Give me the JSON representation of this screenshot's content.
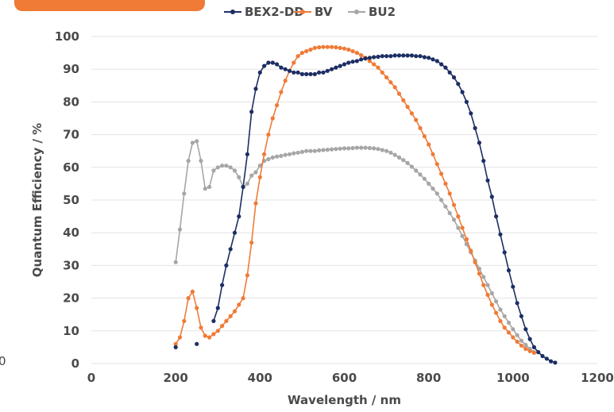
{
  "stray_label": "0",
  "chart_data": {
    "type": "line",
    "title": "",
    "xlabel": "Wavelength / nm",
    "ylabel": "Quantum Efficiency / %",
    "xlim": [
      0,
      1200
    ],
    "ylim": [
      0,
      100
    ],
    "x_ticks": [
      0,
      200,
      400,
      600,
      800,
      1000,
      1200
    ],
    "y_ticks": [
      0,
      10,
      20,
      30,
      40,
      50,
      60,
      70,
      80,
      90,
      100
    ],
    "grid": "horizontal",
    "legend": "top",
    "series": [
      {
        "name": "BEX2-DD",
        "color": "#1c2e63",
        "points": [
          [
            200,
            5
          ],
          [
            250,
            6
          ],
          [
            290,
            13
          ],
          [
            300,
            17
          ],
          [
            310,
            24
          ],
          [
            320,
            30
          ],
          [
            330,
            35
          ],
          [
            340,
            40
          ],
          [
            350,
            45
          ],
          [
            360,
            54
          ],
          [
            370,
            64
          ],
          [
            380,
            77
          ],
          [
            390,
            84
          ],
          [
            400,
            89
          ],
          [
            410,
            91
          ],
          [
            420,
            92
          ],
          [
            430,
            92
          ],
          [
            440,
            91.5
          ],
          [
            450,
            90.5
          ],
          [
            460,
            90
          ],
          [
            470,
            89.5
          ],
          [
            480,
            89
          ],
          [
            490,
            89
          ],
          [
            500,
            88.5
          ],
          [
            510,
            88.5
          ],
          [
            520,
            88.5
          ],
          [
            530,
            88.5
          ],
          [
            540,
            89
          ],
          [
            550,
            89
          ],
          [
            560,
            89.5
          ],
          [
            570,
            90
          ],
          [
            580,
            90.5
          ],
          [
            590,
            91
          ],
          [
            600,
            91.5
          ],
          [
            610,
            92
          ],
          [
            620,
            92.3
          ],
          [
            630,
            92.5
          ],
          [
            640,
            93
          ],
          [
            650,
            93.3
          ],
          [
            660,
            93.5
          ],
          [
            670,
            93.7
          ],
          [
            680,
            93.8
          ],
          [
            690,
            94
          ],
          [
            700,
            94
          ],
          [
            710,
            94
          ],
          [
            720,
            94.2
          ],
          [
            730,
            94.2
          ],
          [
            740,
            94.2
          ],
          [
            750,
            94.2
          ],
          [
            760,
            94.2
          ],
          [
            770,
            94
          ],
          [
            780,
            94
          ],
          [
            790,
            93.7
          ],
          [
            800,
            93.5
          ],
          [
            810,
            93
          ],
          [
            820,
            92.5
          ],
          [
            830,
            91.5
          ],
          [
            840,
            90.5
          ],
          [
            850,
            89
          ],
          [
            860,
            87.5
          ],
          [
            870,
            85.5
          ],
          [
            880,
            83
          ],
          [
            890,
            80
          ],
          [
            900,
            76.5
          ],
          [
            910,
            72
          ],
          [
            920,
            67.5
          ],
          [
            930,
            62
          ],
          [
            940,
            56
          ],
          [
            950,
            51
          ],
          [
            960,
            45
          ],
          [
            970,
            39.5
          ],
          [
            980,
            34
          ],
          [
            990,
            28.5
          ],
          [
            1000,
            23.5
          ],
          [
            1010,
            18.5
          ],
          [
            1020,
            14.5
          ],
          [
            1030,
            10.5
          ],
          [
            1040,
            7.5
          ],
          [
            1050,
            5
          ],
          [
            1060,
            3.5
          ],
          [
            1070,
            2.3
          ],
          [
            1080,
            1.5
          ],
          [
            1090,
            0.7
          ],
          [
            1100,
            0.3
          ]
        ]
      },
      {
        "name": "BV",
        "color": "#ef7b36",
        "points": [
          [
            200,
            6
          ],
          [
            210,
            8
          ],
          [
            220,
            13
          ],
          [
            230,
            20
          ],
          [
            240,
            22
          ],
          [
            250,
            17
          ],
          [
            260,
            11
          ],
          [
            270,
            8.5
          ],
          [
            280,
            8
          ],
          [
            290,
            9
          ],
          [
            300,
            10
          ],
          [
            310,
            11.5
          ],
          [
            320,
            13
          ],
          [
            330,
            14.5
          ],
          [
            340,
            16
          ],
          [
            350,
            18
          ],
          [
            360,
            20
          ],
          [
            370,
            27
          ],
          [
            380,
            37
          ],
          [
            390,
            49
          ],
          [
            400,
            57
          ],
          [
            410,
            64
          ],
          [
            420,
            70
          ],
          [
            430,
            75
          ],
          [
            440,
            79
          ],
          [
            450,
            83
          ],
          [
            460,
            86.5
          ],
          [
            470,
            89.5
          ],
          [
            480,
            92
          ],
          [
            490,
            94
          ],
          [
            500,
            95
          ],
          [
            510,
            95.5
          ],
          [
            520,
            96
          ],
          [
            530,
            96.5
          ],
          [
            540,
            96.7
          ],
          [
            550,
            96.8
          ],
          [
            560,
            96.8
          ],
          [
            570,
            96.8
          ],
          [
            580,
            96.7
          ],
          [
            590,
            96.5
          ],
          [
            600,
            96.3
          ],
          [
            610,
            96
          ],
          [
            620,
            95.5
          ],
          [
            630,
            95
          ],
          [
            640,
            94.3
          ],
          [
            650,
            93.5
          ],
          [
            660,
            92.5
          ],
          [
            670,
            91.5
          ],
          [
            680,
            90.5
          ],
          [
            690,
            89
          ],
          [
            700,
            87.5
          ],
          [
            710,
            86
          ],
          [
            720,
            84.5
          ],
          [
            730,
            82.5
          ],
          [
            740,
            80.5
          ],
          [
            750,
            78.5
          ],
          [
            760,
            76.5
          ],
          [
            770,
            74.5
          ],
          [
            780,
            72
          ],
          [
            790,
            69.5
          ],
          [
            800,
            67
          ],
          [
            810,
            64
          ],
          [
            820,
            61
          ],
          [
            830,
            58
          ],
          [
            840,
            55
          ],
          [
            850,
            52
          ],
          [
            860,
            48.5
          ],
          [
            870,
            45
          ],
          [
            880,
            41.5
          ],
          [
            890,
            38
          ],
          [
            900,
            34.5
          ],
          [
            910,
            31
          ],
          [
            920,
            27.5
          ],
          [
            930,
            24
          ],
          [
            940,
            21
          ],
          [
            950,
            18
          ],
          [
            960,
            15.5
          ],
          [
            970,
            13
          ],
          [
            980,
            11
          ],
          [
            990,
            9.5
          ],
          [
            1000,
            8
          ],
          [
            1010,
            6.7
          ],
          [
            1020,
            5.5
          ],
          [
            1030,
            4.5
          ],
          [
            1040,
            3.8
          ],
          [
            1050,
            3.3
          ]
        ]
      },
      {
        "name": "BU2",
        "color": "#a6a6a6",
        "points": [
          [
            200,
            31
          ],
          [
            210,
            41
          ],
          [
            220,
            52
          ],
          [
            230,
            62
          ],
          [
            240,
            67.5
          ],
          [
            250,
            68
          ],
          [
            260,
            62
          ],
          [
            270,
            53.5
          ],
          [
            280,
            54
          ],
          [
            290,
            59
          ],
          [
            300,
            60
          ],
          [
            310,
            60.5
          ],
          [
            320,
            60.5
          ],
          [
            330,
            60
          ],
          [
            340,
            59
          ],
          [
            350,
            57
          ],
          [
            360,
            54
          ],
          [
            370,
            55
          ],
          [
            380,
            57.5
          ],
          [
            390,
            58.5
          ],
          [
            400,
            60.5
          ],
          [
            410,
            62
          ],
          [
            420,
            62.5
          ],
          [
            430,
            63
          ],
          [
            440,
            63.3
          ],
          [
            450,
            63.5
          ],
          [
            460,
            63.8
          ],
          [
            470,
            64
          ],
          [
            480,
            64.3
          ],
          [
            490,
            64.5
          ],
          [
            500,
            64.7
          ],
          [
            510,
            65
          ],
          [
            520,
            65
          ],
          [
            530,
            65
          ],
          [
            540,
            65.2
          ],
          [
            550,
            65.3
          ],
          [
            560,
            65.4
          ],
          [
            570,
            65.5
          ],
          [
            580,
            65.6
          ],
          [
            590,
            65.7
          ],
          [
            600,
            65.8
          ],
          [
            610,
            65.8
          ],
          [
            620,
            65.9
          ],
          [
            630,
            66
          ],
          [
            640,
            66
          ],
          [
            650,
            66
          ],
          [
            660,
            65.9
          ],
          [
            670,
            65.8
          ],
          [
            680,
            65.6
          ],
          [
            690,
            65.3
          ],
          [
            700,
            65
          ],
          [
            710,
            64.5
          ],
          [
            720,
            63.8
          ],
          [
            730,
            63
          ],
          [
            740,
            62.2
          ],
          [
            750,
            61.3
          ],
          [
            760,
            60.2
          ],
          [
            770,
            59
          ],
          [
            780,
            57.8
          ],
          [
            790,
            56.5
          ],
          [
            800,
            55
          ],
          [
            810,
            53.5
          ],
          [
            820,
            52
          ],
          [
            830,
            50
          ],
          [
            840,
            48
          ],
          [
            850,
            46
          ],
          [
            860,
            44
          ],
          [
            870,
            41.5
          ],
          [
            880,
            39
          ],
          [
            890,
            36.5
          ],
          [
            900,
            34
          ],
          [
            910,
            31.5
          ],
          [
            920,
            29
          ],
          [
            930,
            26.5
          ],
          [
            940,
            24
          ],
          [
            950,
            21.5
          ],
          [
            960,
            19
          ],
          [
            970,
            16.5
          ],
          [
            980,
            14.5
          ],
          [
            990,
            12.5
          ],
          [
            1000,
            10.5
          ],
          [
            1010,
            8.7
          ],
          [
            1020,
            7
          ],
          [
            1030,
            5.7
          ],
          [
            1040,
            4.5
          ],
          [
            1050,
            3.5
          ]
        ]
      }
    ]
  }
}
